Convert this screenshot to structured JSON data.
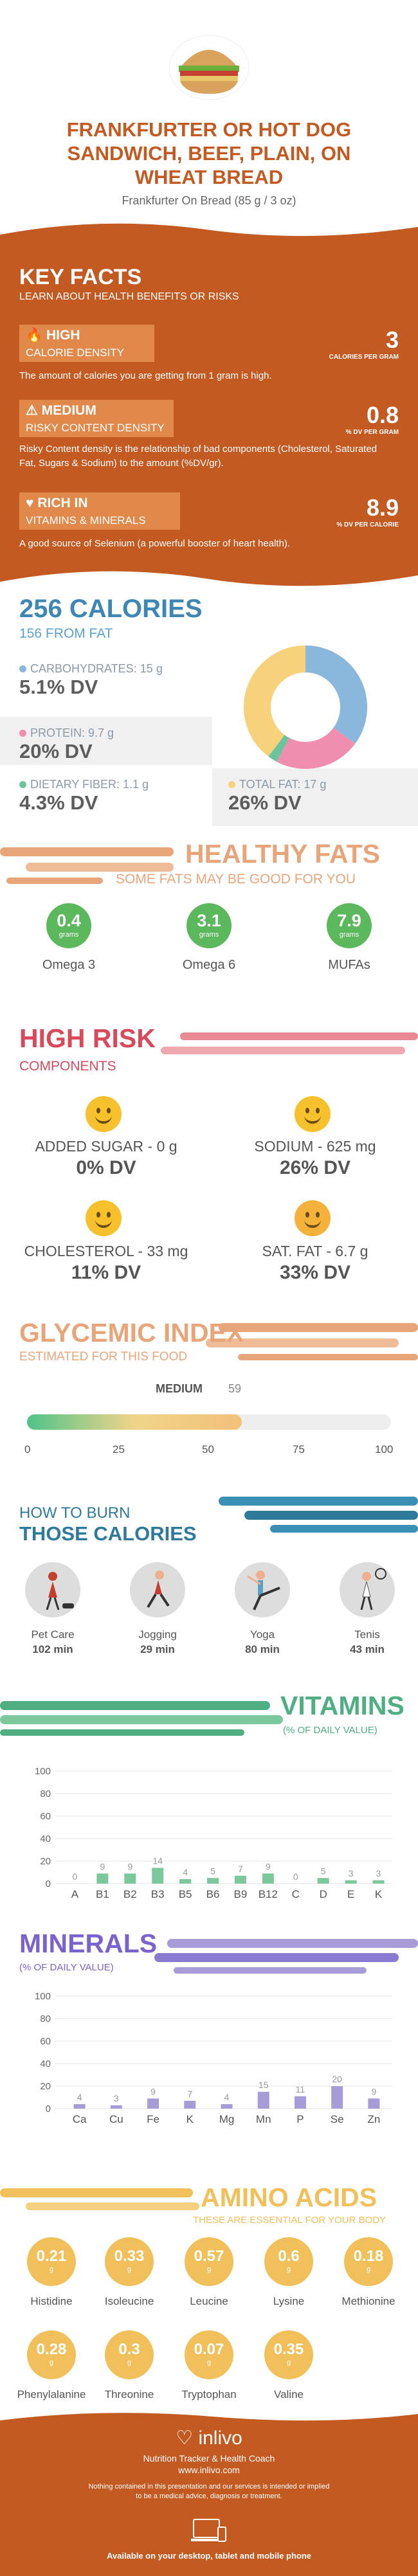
{
  "header": {
    "title_lines": [
      "FRANKFURTER OR HOT DOG",
      "SANDWICH, BEEF, PLAIN, ON",
      "WHEAT BREAD"
    ],
    "subtitle": "Frankfurter On Bread (85 g / 3 oz)"
  },
  "key_facts": {
    "title": "KEY FACTS",
    "subtitle": "LEARN ABOUT HEALTH BENEFITS OR RISKS",
    "items": [
      {
        "badge": "HIGH",
        "badge_sub": "CALORIE DENSITY",
        "desc": "The amount of calories you are getting from 1 gram is high.",
        "value": "3",
        "value_label": "CALORIES PER GRAM"
      },
      {
        "badge": "MEDIUM",
        "badge_sub": "RISKY CONTENT DENSITY",
        "desc": "Risky Content density is the relationship of bad components (Cholesterol, Saturated Fat, Sugars & Sodium) to the amount (%DV/gr).",
        "value": "0.8",
        "value_label": "% DV PER GRAM"
      },
      {
        "badge": "RICH IN",
        "badge_sub": "VITAMINS & MINERALS",
        "desc": "A good source of Selenium (a powerful booster of heart health).",
        "value": "8.9",
        "value_label": "% DV PER CALORIE"
      }
    ]
  },
  "calories": {
    "title": "256 CALORIES",
    "from_fat": "156 FROM FAT",
    "macros": [
      {
        "label": "CARBOHYDRATES: 15 g",
        "dv": "5.1% DV",
        "color": "#8ab8dc",
        "grams": 15
      },
      {
        "label": "PROTEIN: 9.7 g",
        "dv": "20% DV",
        "color": "#f08eb0",
        "grams": 9.7
      },
      {
        "label": "DIETARY FIBER: 1.1 g",
        "dv": "4.3% DV",
        "color": "#6cc49c",
        "grams": 1.1
      },
      {
        "label": "TOTAL FAT: 17 g",
        "dv": "26% DV",
        "color": "#f7d27a",
        "grams": 17
      }
    ]
  },
  "healthy_fats": {
    "title": "HEALTHY FATS",
    "subtitle": "SOME FATS MAY BE GOOD FOR YOU",
    "items": [
      {
        "value": "0.4",
        "unit": "grams",
        "name": "Omega 3"
      },
      {
        "value": "3.1",
        "unit": "grams",
        "name": "Omega 6"
      },
      {
        "value": "7.9",
        "unit": "grams",
        "name": "MUFAs"
      }
    ]
  },
  "high_risk": {
    "title": "HIGH RISK",
    "subtitle": "COMPONENTS",
    "items": [
      {
        "name": "ADDED SUGAR - 0 g",
        "dv": "0% DV"
      },
      {
        "name": "SODIUM - 625 mg",
        "dv": "26% DV"
      },
      {
        "name": "CHOLESTEROL - 33 mg",
        "dv": "11% DV"
      },
      {
        "name": "SAT. FAT - 6.7 g",
        "dv": "33% DV"
      }
    ]
  },
  "glycemic": {
    "title": "GLYCEMIC INDEX",
    "subtitle": "ESTIMATED FOR THIS FOOD",
    "level": "MEDIUM",
    "value": 59,
    "value_text": "59",
    "ticks": [
      "0",
      "25",
      "50",
      "75",
      "100"
    ]
  },
  "burn": {
    "title1": "HOW TO BURN",
    "title2": "THOSE CALORIES",
    "items": [
      {
        "name": "Pet Care",
        "min": "102 min"
      },
      {
        "name": "Jogging",
        "min": "29 min"
      },
      {
        "name": "Yoga",
        "min": "80 min"
      },
      {
        "name": "Tenis",
        "min": "43 min"
      }
    ]
  },
  "vitamins": {
    "title": "VITAMINS",
    "subtitle": "(% OF DAILY VALUE)"
  },
  "minerals": {
    "title": "MINERALS",
    "subtitle": "(% OF DAILY VALUE)"
  },
  "chart_data": [
    {
      "type": "bar",
      "title": "VITAMINS",
      "ylabel": "% OF DAILY VALUE",
      "ylim": [
        0,
        100
      ],
      "yticks": [
        "0",
        "20",
        "40",
        "60",
        "80",
        "100"
      ],
      "categories": [
        "A",
        "B1",
        "B2",
        "B3",
        "B5",
        "B6",
        "B9",
        "B12",
        "C",
        "D",
        "E",
        "K"
      ],
      "values": [
        0,
        9,
        9,
        14,
        4,
        5,
        7,
        9,
        0,
        5,
        3,
        3
      ],
      "color": "#7cc79c"
    },
    {
      "type": "bar",
      "title": "MINERALS",
      "ylabel": "% OF DAILY VALUE",
      "ylim": [
        0,
        100
      ],
      "yticks": [
        "0",
        "20",
        "40",
        "60",
        "80",
        "100"
      ],
      "categories": [
        "Ca",
        "Cu",
        "Fe",
        "K",
        "Mg",
        "Mn",
        "P",
        "Se",
        "Zn"
      ],
      "values": [
        4,
        3,
        9,
        7,
        4,
        15,
        11,
        20,
        9
      ],
      "color": "#a79bd8"
    }
  ],
  "amino": {
    "title": "AMINO ACIDS",
    "subtitle": "THESE ARE ESSENTIAL FOR YOUR BODY",
    "items": [
      {
        "value": "0.21",
        "unit": "g",
        "name": "Histidine"
      },
      {
        "value": "0.33",
        "unit": "g",
        "name": "Isoleucine"
      },
      {
        "value": "0.57",
        "unit": "g",
        "name": "Leucine"
      },
      {
        "value": "0.6",
        "unit": "g",
        "name": "Lysine"
      },
      {
        "value": "0.18",
        "unit": "g",
        "name": "Methionine"
      },
      {
        "value": "0.28",
        "unit": "g",
        "name": "Phenylalanine"
      },
      {
        "value": "0.3",
        "unit": "g",
        "name": "Threonine"
      },
      {
        "value": "0.07",
        "unit": "g",
        "name": "Tryptophan"
      },
      {
        "value": "0.35",
        "unit": "g",
        "name": "Valine"
      }
    ]
  },
  "footer": {
    "brand": "inlivo",
    "tagline": "Nutrition Tracker & Health Coach",
    "url": "www.inlivo.com",
    "disclaimer1": "Nothing contained in this presentation and our services is intended or implied",
    "disclaimer2": "to be a medical advice, diagnosis or treatment.",
    "available": "Available on your desktop, tablet and mobile phone"
  }
}
